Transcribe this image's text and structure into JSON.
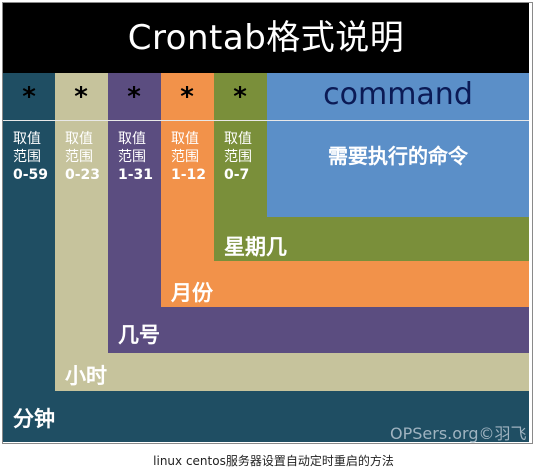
{
  "title": "Crontab格式说明",
  "fields": [
    {
      "symbol": "*",
      "range_label": "取值范围",
      "range": "0-59",
      "name": "分钟"
    },
    {
      "symbol": "*",
      "range_label": "取值范围",
      "range": "0-23",
      "name": "小时"
    },
    {
      "symbol": "*",
      "range_label": "取值范围",
      "range": "1-31",
      "name": "几号"
    },
    {
      "symbol": "*",
      "range_label": "取值范围",
      "range": "1-12",
      "name": "月份"
    },
    {
      "symbol": "*",
      "range_label": "取值范围",
      "range": "0-7",
      "name": "星期几"
    }
  ],
  "command": {
    "keyword": "command",
    "description": "需要执行的命令"
  },
  "watermark": "OPSers.org©羽飞",
  "caption": "linux centos服务器设置自动定时重启的方法",
  "colors": {
    "minute": "#1f4e63",
    "hour": "#c6c39c",
    "day": "#5b4d80",
    "month": "#f2924a",
    "weekday": "#7a8f3a",
    "command": "#5b8fc8",
    "title_bg": "#000000"
  }
}
